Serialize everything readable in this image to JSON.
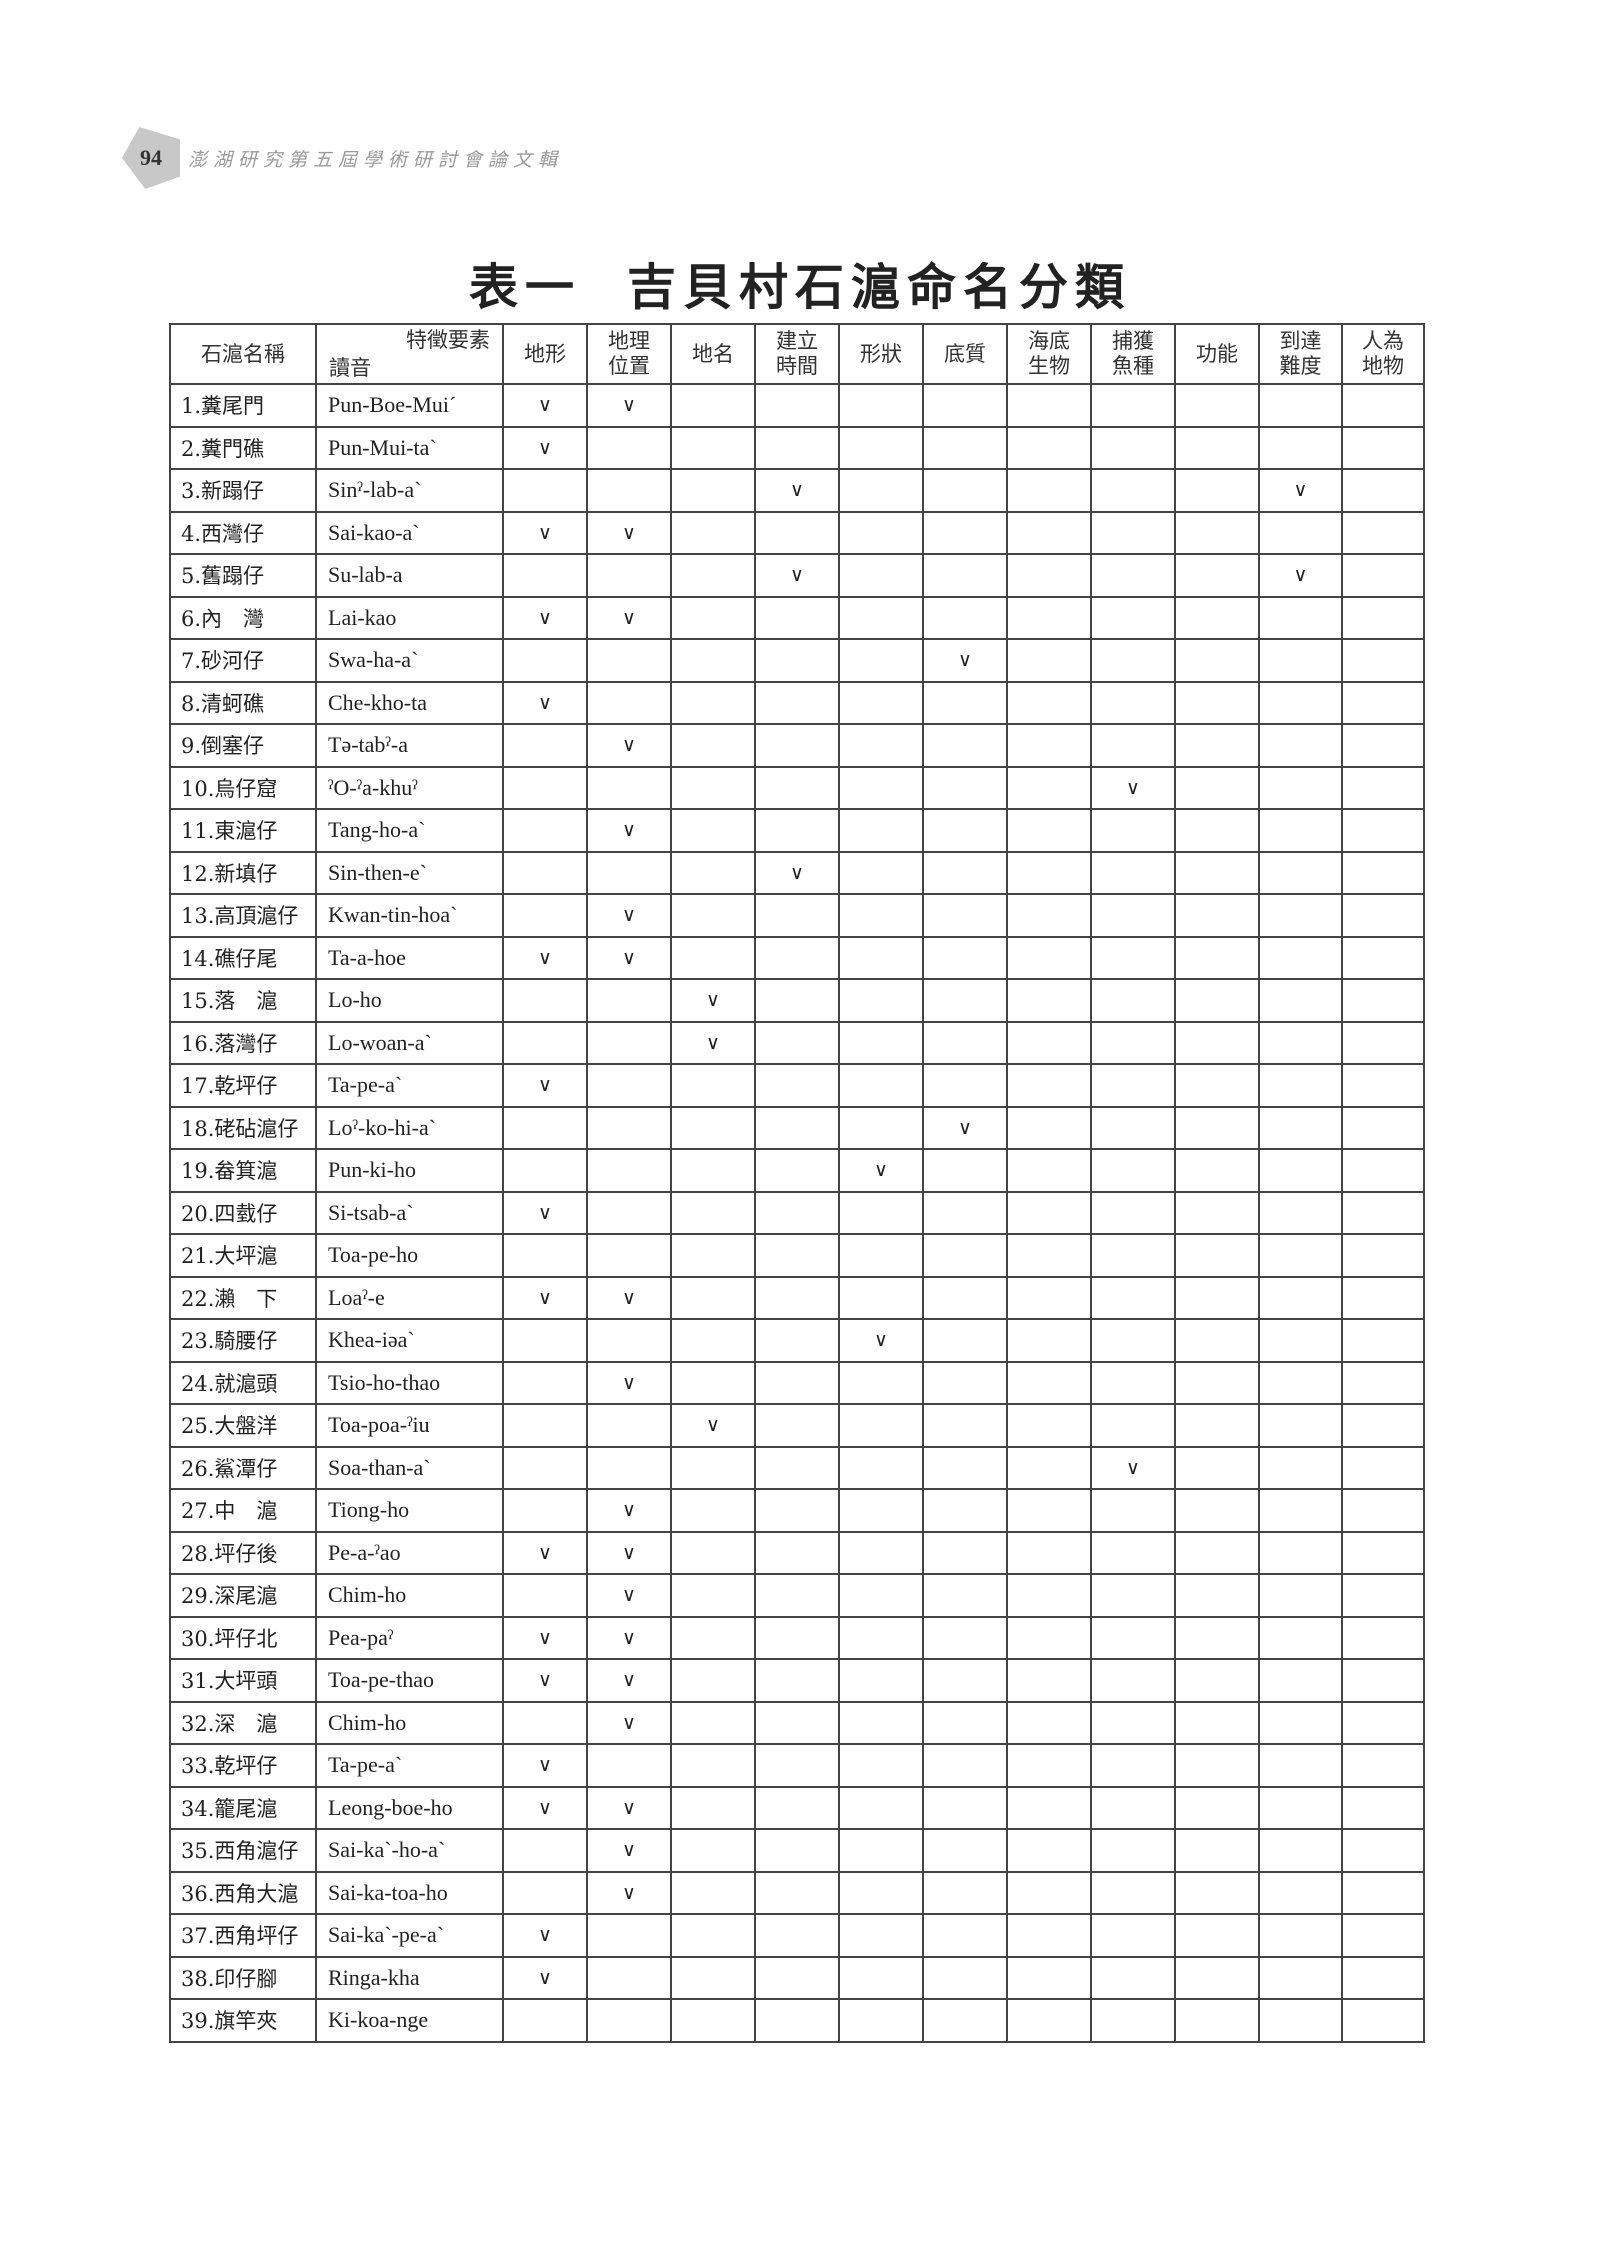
{
  "running_head": {
    "page_number": "94",
    "journal_title": "澎湖研究第五屆學術研討會論文輯"
  },
  "title": {
    "label": "表一",
    "text": "吉貝村石滬命名分類"
  },
  "table": {
    "header": {
      "name": "石滬名稱",
      "feature": "特徵要素",
      "reading": "讀音"
    },
    "columns": [
      "地形",
      "地理\n位置",
      "地名",
      "建立\n時間",
      "形狀",
      "底質",
      "海底\n生物",
      "捕獲\n魚種",
      "功能",
      "到達\n難度",
      "人為\n地物"
    ],
    "check_symbol": "∨",
    "rows": [
      {
        "name": "1.糞尾門",
        "reading": "Pun-Boe-Muiˊ",
        "marks": [
          1,
          1,
          0,
          0,
          0,
          0,
          0,
          0,
          0,
          0,
          0
        ]
      },
      {
        "name": "2.糞門礁",
        "reading": "Pun-Mui-taˋ",
        "marks": [
          1,
          0,
          0,
          0,
          0,
          0,
          0,
          0,
          0,
          0,
          0
        ]
      },
      {
        "name": "3.新蹋仔",
        "reading": "Sinˀ-lab-aˋ",
        "marks": [
          0,
          0,
          0,
          1,
          0,
          0,
          0,
          0,
          0,
          1,
          0
        ]
      },
      {
        "name": "4.西灣仔",
        "reading": "Sai-kao-aˋ",
        "marks": [
          1,
          1,
          0,
          0,
          0,
          0,
          0,
          0,
          0,
          0,
          0
        ]
      },
      {
        "name": "5.舊蹋仔",
        "reading": "Su-lab-a",
        "marks": [
          0,
          0,
          0,
          1,
          0,
          0,
          0,
          0,
          0,
          1,
          0
        ]
      },
      {
        "name": "6.內　灣",
        "reading": "Lai-kao",
        "marks": [
          1,
          1,
          0,
          0,
          0,
          0,
          0,
          0,
          0,
          0,
          0
        ]
      },
      {
        "name": "7.砂河仔",
        "reading": "Swa-ha-aˋ",
        "marks": [
          0,
          0,
          0,
          0,
          0,
          1,
          0,
          0,
          0,
          0,
          0
        ]
      },
      {
        "name": "8.清蚵礁",
        "reading": "Che-kho-ta",
        "marks": [
          1,
          0,
          0,
          0,
          0,
          0,
          0,
          0,
          0,
          0,
          0
        ]
      },
      {
        "name": "9.倒塞仔",
        "reading": "Tə-tabˀ-a",
        "marks": [
          0,
          1,
          0,
          0,
          0,
          0,
          0,
          0,
          0,
          0,
          0
        ]
      },
      {
        "name": "10.烏仔窟",
        "reading": "ˀO-ˀa-khuˀ",
        "marks": [
          0,
          0,
          0,
          0,
          0,
          0,
          0,
          1,
          0,
          0,
          0
        ]
      },
      {
        "name": "11.東滬仔",
        "reading": "Tang-ho-aˋ",
        "marks": [
          0,
          1,
          0,
          0,
          0,
          0,
          0,
          0,
          0,
          0,
          0
        ]
      },
      {
        "name": "12.新填仔",
        "reading": "Sin-then-eˋ",
        "marks": [
          0,
          0,
          0,
          1,
          0,
          0,
          0,
          0,
          0,
          0,
          0
        ]
      },
      {
        "name": "13.高頂滬仔",
        "reading": "Kwan-tin-hoaˋ",
        "marks": [
          0,
          1,
          0,
          0,
          0,
          0,
          0,
          0,
          0,
          0,
          0
        ]
      },
      {
        "name": "14.礁仔尾",
        "reading": "Ta-a-hoe",
        "marks": [
          1,
          1,
          0,
          0,
          0,
          0,
          0,
          0,
          0,
          0,
          0
        ]
      },
      {
        "name": "15.落　滬",
        "reading": "Lo-ho",
        "marks": [
          0,
          0,
          1,
          0,
          0,
          0,
          0,
          0,
          0,
          0,
          0
        ]
      },
      {
        "name": "16.落灣仔",
        "reading": "Lo-woan-aˋ",
        "marks": [
          0,
          0,
          1,
          0,
          0,
          0,
          0,
          0,
          0,
          0,
          0
        ]
      },
      {
        "name": "17.乾坪仔",
        "reading": "Ta-pe-aˋ",
        "marks": [
          1,
          0,
          0,
          0,
          0,
          0,
          0,
          0,
          0,
          0,
          0
        ]
      },
      {
        "name": "18.硓砧滬仔",
        "reading": "Loˀ-ko-hi-aˋ",
        "marks": [
          0,
          0,
          0,
          0,
          0,
          1,
          0,
          0,
          0,
          0,
          0
        ]
      },
      {
        "name": "19.畚箕滬",
        "reading": "Pun-ki-ho",
        "marks": [
          0,
          0,
          0,
          0,
          1,
          0,
          0,
          0,
          0,
          0,
          0
        ]
      },
      {
        "name": "20.四臷仔",
        "reading": "Si-tsab-aˋ",
        "marks": [
          1,
          0,
          0,
          0,
          0,
          0,
          0,
          0,
          0,
          0,
          0
        ]
      },
      {
        "name": "21.大坪滬",
        "reading": "Toa-pe-ho",
        "marks": [
          0,
          0,
          0,
          0,
          0,
          0,
          0,
          0,
          0,
          0,
          0
        ]
      },
      {
        "name": "22.瀨　下",
        "reading": "Loaˀ-e",
        "marks": [
          1,
          1,
          0,
          0,
          0,
          0,
          0,
          0,
          0,
          0,
          0
        ]
      },
      {
        "name": "23.騎腰仔",
        "reading": "Khea-iəaˋ",
        "marks": [
          0,
          0,
          0,
          0,
          1,
          0,
          0,
          0,
          0,
          0,
          0
        ]
      },
      {
        "name": "24.就滬頭",
        "reading": "Tsio-ho-thao",
        "marks": [
          0,
          1,
          0,
          0,
          0,
          0,
          0,
          0,
          0,
          0,
          0
        ]
      },
      {
        "name": "25.大盤洋",
        "reading": "Toa-poa-ˀiu",
        "marks": [
          0,
          0,
          1,
          0,
          0,
          0,
          0,
          0,
          0,
          0,
          0
        ]
      },
      {
        "name": "26.鯊潭仔",
        "reading": "Soa-than-aˋ",
        "marks": [
          0,
          0,
          0,
          0,
          0,
          0,
          0,
          1,
          0,
          0,
          0
        ]
      },
      {
        "name": "27.中　滬",
        "reading": "Tiong-ho",
        "marks": [
          0,
          1,
          0,
          0,
          0,
          0,
          0,
          0,
          0,
          0,
          0
        ]
      },
      {
        "name": "28.坪仔後",
        "reading": "Pe-a-ˀao",
        "marks": [
          1,
          1,
          0,
          0,
          0,
          0,
          0,
          0,
          0,
          0,
          0
        ]
      },
      {
        "name": "29.深尾滬",
        "reading": "Chim-ho",
        "marks": [
          0,
          1,
          0,
          0,
          0,
          0,
          0,
          0,
          0,
          0,
          0
        ]
      },
      {
        "name": "30.坪仔北",
        "reading": "Pea-paˀ",
        "marks": [
          1,
          1,
          0,
          0,
          0,
          0,
          0,
          0,
          0,
          0,
          0
        ]
      },
      {
        "name": "31.大坪頭",
        "reading": "Toa-pe-thao",
        "marks": [
          1,
          1,
          0,
          0,
          0,
          0,
          0,
          0,
          0,
          0,
          0
        ]
      },
      {
        "name": "32.深　滬",
        "reading": "Chim-ho",
        "marks": [
          0,
          1,
          0,
          0,
          0,
          0,
          0,
          0,
          0,
          0,
          0
        ]
      },
      {
        "name": "33.乾坪仔",
        "reading": "Ta-pe-aˋ",
        "marks": [
          1,
          0,
          0,
          0,
          0,
          0,
          0,
          0,
          0,
          0,
          0
        ]
      },
      {
        "name": "34.籠尾滬",
        "reading": "Leong-boe-ho",
        "marks": [
          1,
          1,
          0,
          0,
          0,
          0,
          0,
          0,
          0,
          0,
          0
        ]
      },
      {
        "name": "35.西角滬仔",
        "reading": "Sai-kaˋ-ho-aˋ",
        "marks": [
          0,
          1,
          0,
          0,
          0,
          0,
          0,
          0,
          0,
          0,
          0
        ]
      },
      {
        "name": "36.西角大滬",
        "reading": "Sai-ka-toa-ho",
        "marks": [
          0,
          1,
          0,
          0,
          0,
          0,
          0,
          0,
          0,
          0,
          0
        ]
      },
      {
        "name": "37.西角坪仔",
        "reading": "Sai-kaˋ-pe-aˋ",
        "marks": [
          1,
          0,
          0,
          0,
          0,
          0,
          0,
          0,
          0,
          0,
          0
        ]
      },
      {
        "name": "38.印仔腳",
        "reading": "Ringa-kha",
        "marks": [
          1,
          0,
          0,
          0,
          0,
          0,
          0,
          0,
          0,
          0,
          0
        ]
      },
      {
        "name": "39.旗竿夾",
        "reading": "Ki-koa-nge",
        "marks": [
          0,
          0,
          0,
          0,
          0,
          0,
          0,
          0,
          0,
          0,
          0
        ]
      }
    ]
  }
}
